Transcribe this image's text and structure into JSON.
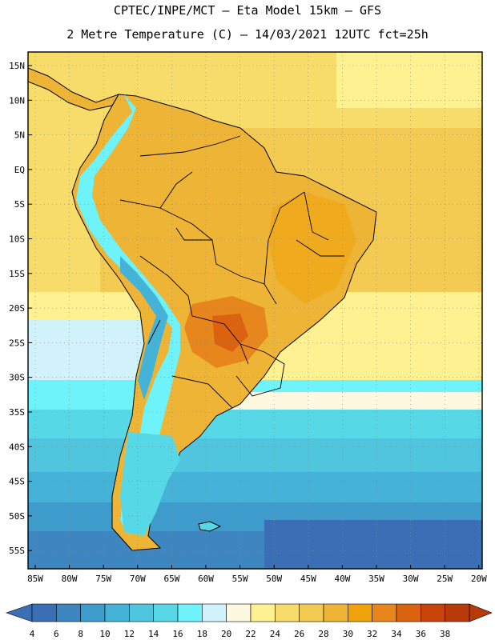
{
  "header": {
    "line1": "CPTEC/INPE/MCT –  Eta Model 15km – GFS",
    "line2": "2 Metre Temperature (C) – 14/03/2021 12UTC fct=25h"
  },
  "map": {
    "lat_labels": [
      "15N",
      "10N",
      "5N",
      "EQ",
      "5S",
      "10S",
      "15S",
      "20S",
      "25S",
      "30S",
      "35S",
      "40S",
      "45S",
      "50S",
      "55S"
    ],
    "lon_labels": [
      "85W",
      "80W",
      "75W",
      "70W",
      "65W",
      "60W",
      "55W",
      "50W",
      "45W",
      "40W",
      "35W",
      "30W",
      "25W",
      "20W"
    ],
    "grid": "dotted"
  },
  "colorbar": {
    "labels": [
      "4",
      "6",
      "8",
      "10",
      "12",
      "14",
      "16",
      "18",
      "20",
      "22",
      "24",
      "26",
      "28",
      "30",
      "32",
      "34",
      "36",
      "38"
    ],
    "colors": [
      "#3a6fb5",
      "#3d86c0",
      "#3e9ccc",
      "#45b3d7",
      "#4fc6de",
      "#56d8e6",
      "#6ef3fb",
      "#d2f2fb",
      "#fdf8e0",
      "#fdf191",
      "#f8dc6a",
      "#f3cb53",
      "#eeb436",
      "#f0a20a",
      "#e8861e",
      "#db6310",
      "#c7430a",
      "#b83a0b"
    ],
    "low_arrow_color": "#3a6fb5",
    "high_arrow_color": "#b83a0b"
  }
}
